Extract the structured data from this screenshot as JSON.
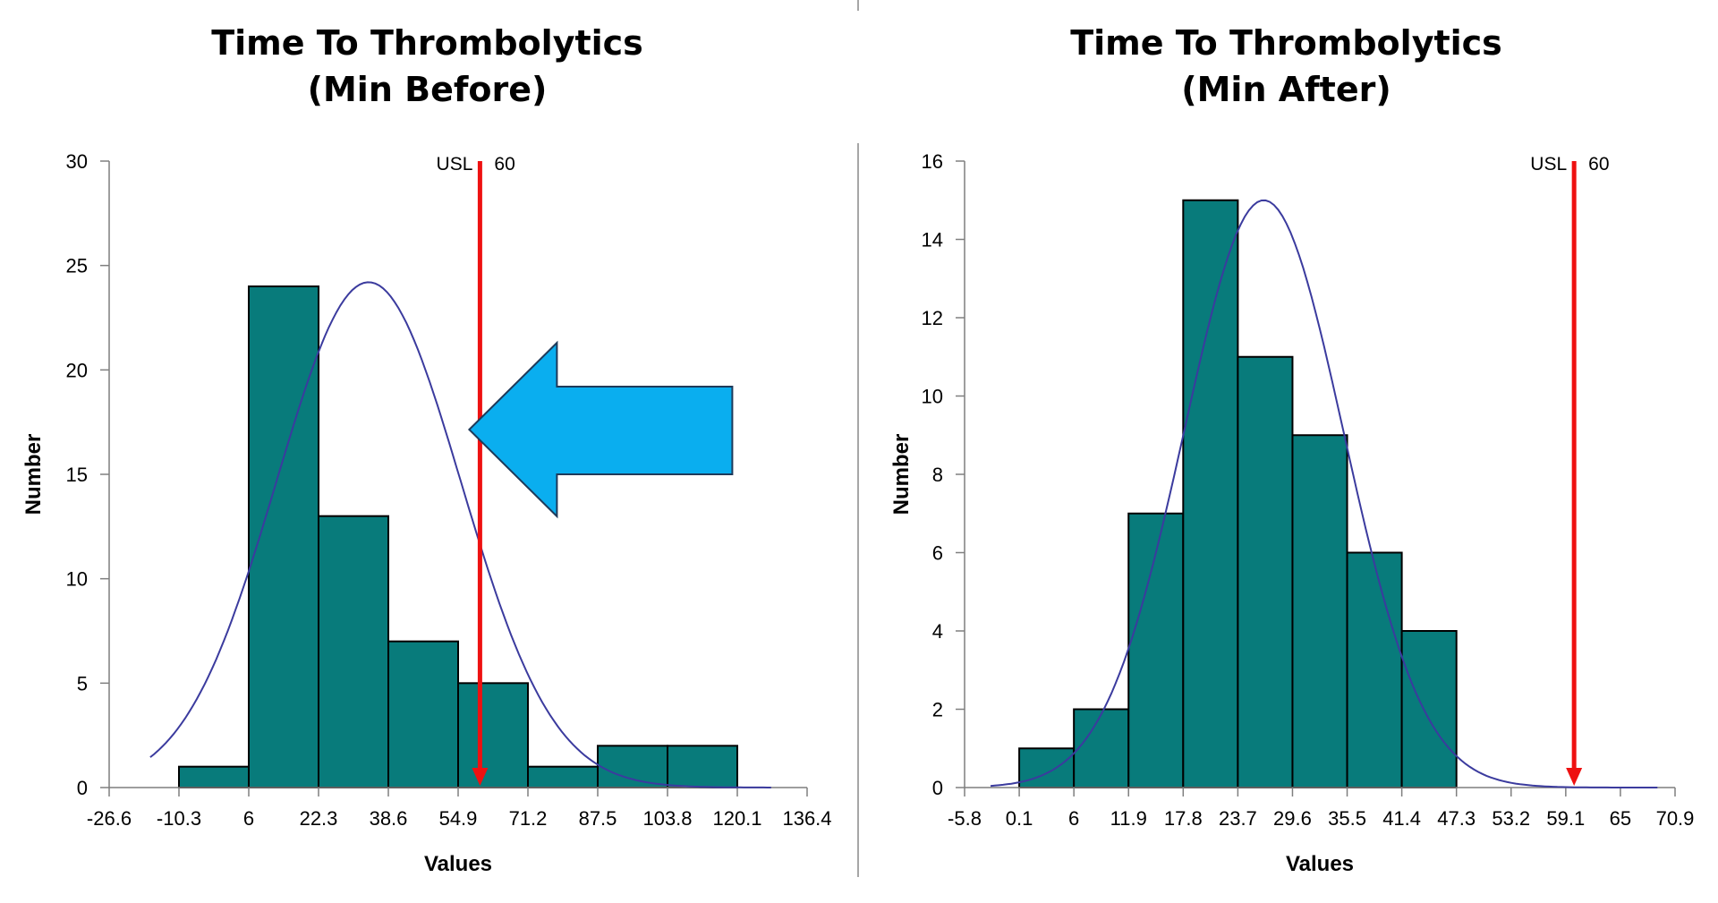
{
  "colors": {
    "bar_fill": "#087B7B",
    "bar_stroke": "#000000",
    "curve": "#3B3B9E",
    "usl_line": "#EE1111",
    "arrow_fill": "#0AAEEF",
    "arrow_stroke": "#1E3A5A",
    "axis": "#7F7F7F"
  },
  "chart_data": [
    {
      "type": "bar",
      "title_lines": [
        "Time To Thrombolytics",
        "(Min Before)"
      ],
      "xlabel": "Values",
      "ylabel": "Number",
      "x_ticks": [
        "-26.6",
        "-10.3",
        "6",
        "22.3",
        "38.6",
        "54.9",
        "71.2",
        "87.5",
        "103.8",
        "120.1",
        "136.4"
      ],
      "x_range": [
        -26.6,
        136.4
      ],
      "y_ticks": [
        "0",
        "5",
        "10",
        "15",
        "20",
        "25",
        "30"
      ],
      "ylim": [
        0,
        30
      ],
      "bins": [
        {
          "from": -10.3,
          "to": 6,
          "count": 1
        },
        {
          "from": 6,
          "to": 22.3,
          "count": 24
        },
        {
          "from": 22.3,
          "to": 38.6,
          "count": 13
        },
        {
          "from": 38.6,
          "to": 54.9,
          "count": 7
        },
        {
          "from": 54.9,
          "to": 71.2,
          "count": 5
        },
        {
          "from": 71.2,
          "to": 87.5,
          "count": 1
        },
        {
          "from": 87.5,
          "to": 103.8,
          "count": 2
        },
        {
          "from": 103.8,
          "to": 120.1,
          "count": 2
        }
      ],
      "normal_curve": {
        "mean": 34,
        "sd": 21.5,
        "peak": 24.2,
        "x_from": -17,
        "x_to": 128
      },
      "usl": {
        "label": "USL",
        "value": 60,
        "value_label": "60"
      },
      "annotation": {
        "type": "arrow-left",
        "color": "#0AAEEF"
      }
    },
    {
      "type": "bar",
      "title_lines": [
        "Time To Thrombolytics",
        "(Min After)"
      ],
      "xlabel": "Values",
      "ylabel": "Number",
      "x_ticks": [
        "-5.8",
        "0.1",
        "6",
        "11.9",
        "17.8",
        "23.7",
        "29.6",
        "35.5",
        "41.4",
        "47.3",
        "53.2",
        "59.1",
        "65",
        "70.9"
      ],
      "x_range": [
        -5.8,
        70.9
      ],
      "y_ticks": [
        "0",
        "2",
        "4",
        "6",
        "8",
        "10",
        "12",
        "14",
        "16"
      ],
      "ylim": [
        0,
        16
      ],
      "bins": [
        {
          "from": 0.1,
          "to": 6,
          "count": 1
        },
        {
          "from": 6,
          "to": 11.9,
          "count": 2
        },
        {
          "from": 11.9,
          "to": 17.8,
          "count": 7
        },
        {
          "from": 17.8,
          "to": 23.7,
          "count": 15
        },
        {
          "from": 23.7,
          "to": 29.6,
          "count": 11
        },
        {
          "from": 29.6,
          "to": 35.5,
          "count": 9
        },
        {
          "from": 35.5,
          "to": 41.4,
          "count": 6
        },
        {
          "from": 41.4,
          "to": 47.3,
          "count": 4
        }
      ],
      "normal_curve": {
        "mean": 26.5,
        "sd": 8.6,
        "peak": 15.0,
        "x_from": -3,
        "x_to": 69
      },
      "usl": {
        "label": "USL",
        "value": 60,
        "value_label": "60"
      }
    }
  ]
}
